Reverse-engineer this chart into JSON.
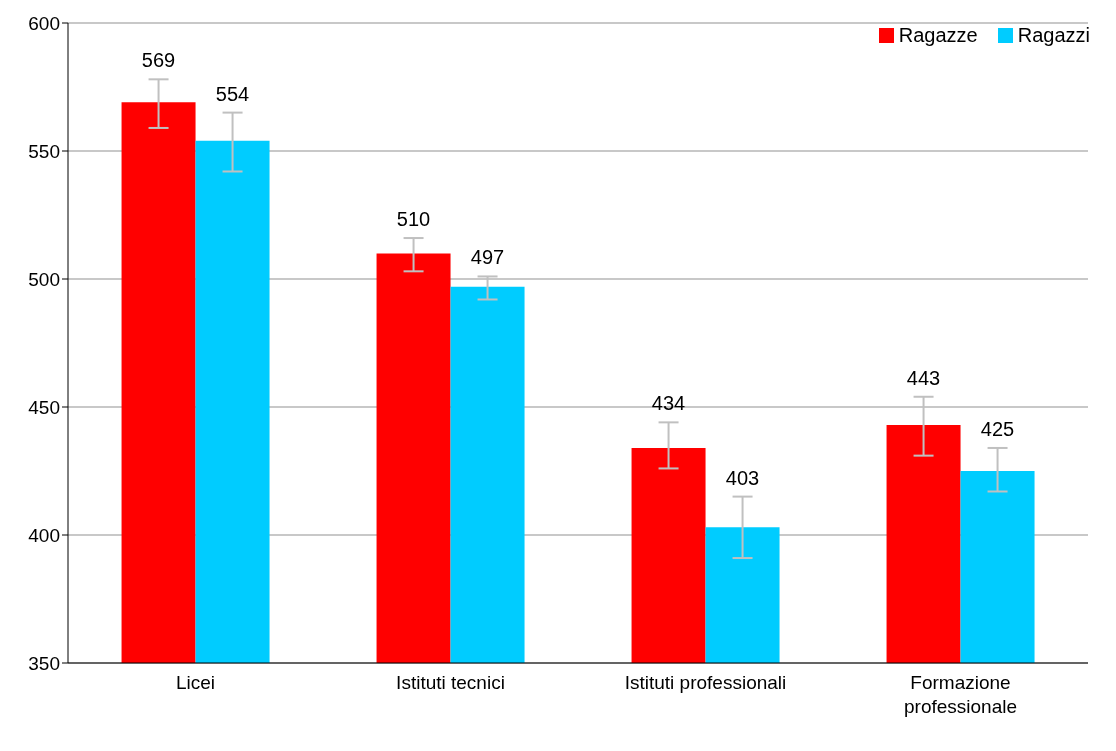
{
  "chart_data": {
    "type": "bar",
    "categories": [
      "Licei",
      "Istituti tecnici",
      "Istituti professionali",
      "Formazione professionale"
    ],
    "series": [
      {
        "name": "Ragazze",
        "color": "#ff0000",
        "values": [
          569,
          510,
          434,
          443
        ],
        "errors": [
          [
            559,
            578
          ],
          [
            503,
            516
          ],
          [
            426,
            444
          ],
          [
            431,
            454
          ]
        ]
      },
      {
        "name": "Ragazzi",
        "color": "#00ccff",
        "values": [
          554,
          497,
          403,
          425
        ],
        "errors": [
          [
            542,
            565
          ],
          [
            492,
            501
          ],
          [
            391,
            415
          ],
          [
            417,
            434
          ]
        ]
      }
    ],
    "ylim": [
      350,
      600
    ],
    "yticks": [
      350,
      400,
      450,
      500,
      550,
      600
    ],
    "grid": "y",
    "legend": "top right",
    "data_labels": true
  }
}
